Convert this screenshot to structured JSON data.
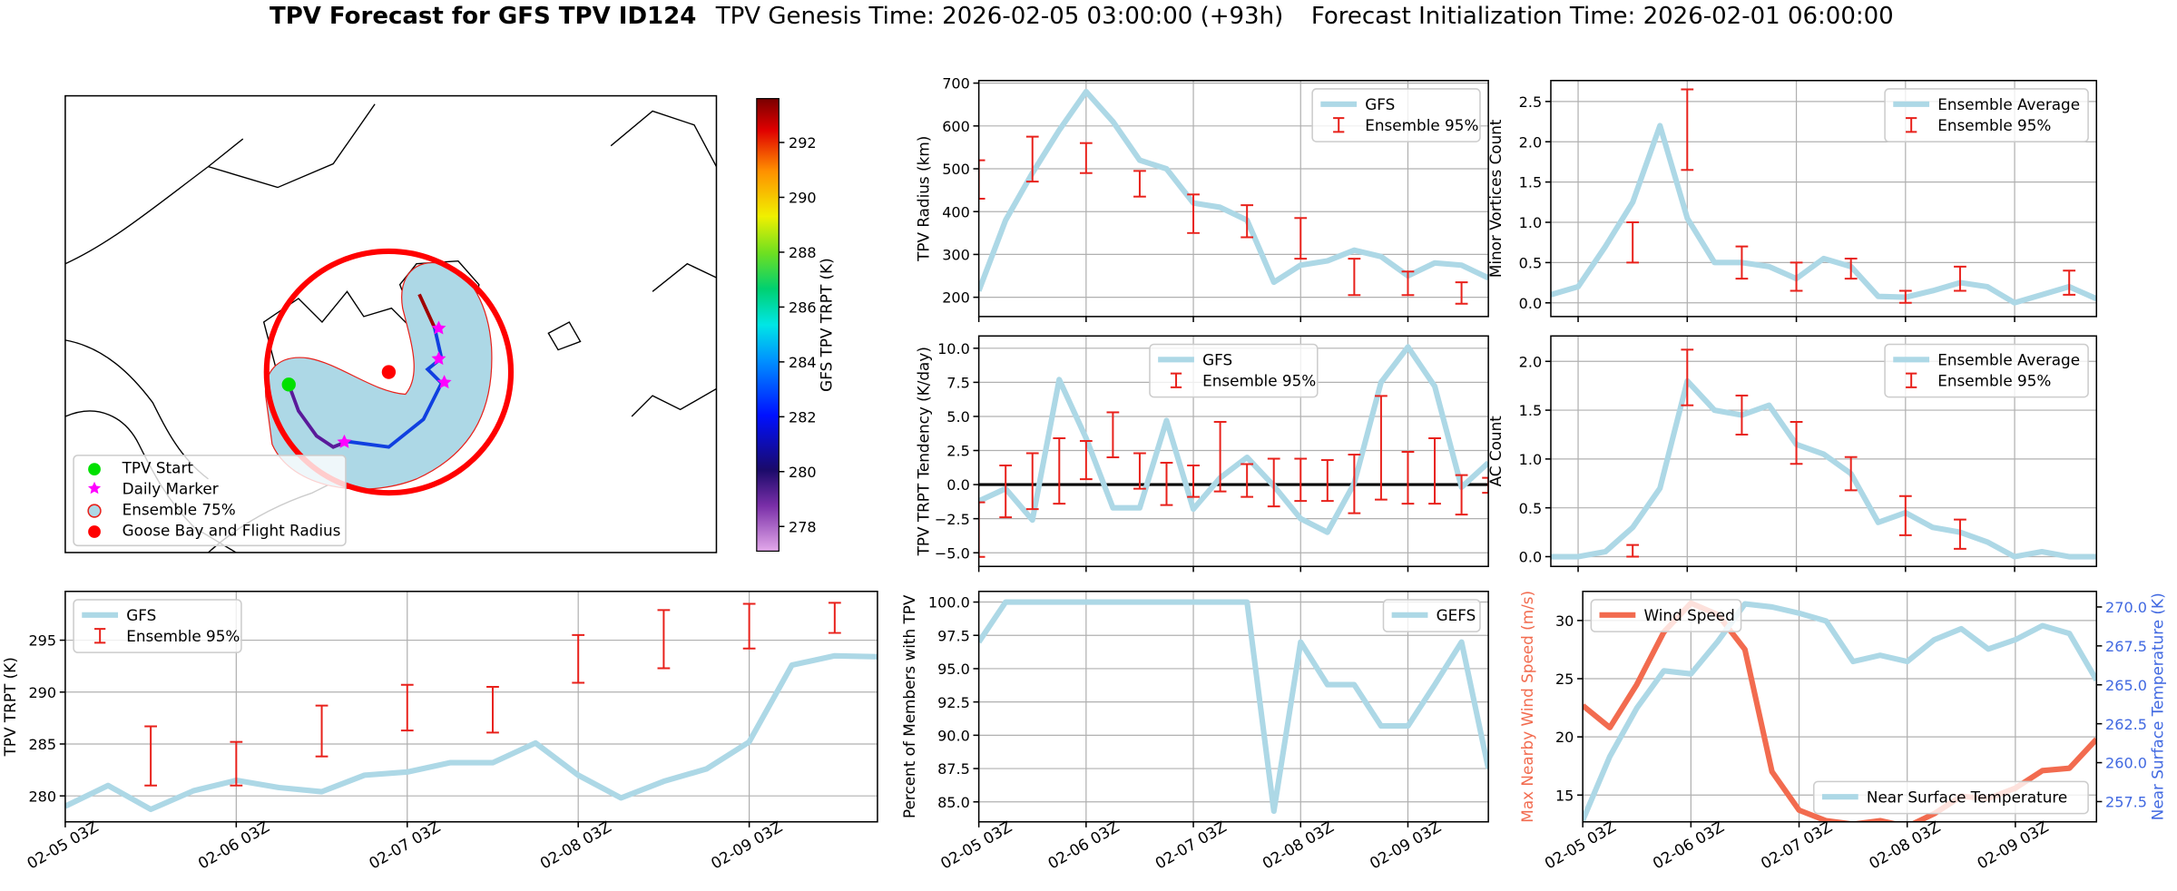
{
  "figure": {
    "title": "TPV Forecast for GFS TPV ID124",
    "genesis": "TPV Genesis Time: 2026-02-05 03:00:00 (+93h)",
    "init": "Forecast Initialization Time: 2026-02-01 06:00:00"
  },
  "chart_data": [
    {
      "type": "map",
      "legend": [
        "TPV Start",
        "Daily Marker",
        "Ensemble 75%",
        "Goose Bay and Flight Radius"
      ],
      "colorbar_label": "GFS TPV TRPT (K)",
      "clim": [
        277.1,
        293.6
      ],
      "cticks": [
        278,
        280,
        282,
        284,
        286,
        288,
        290,
        292
      ]
    },
    {
      "type": "line",
      "ylabel": "TPV Radius (km)",
      "x": [
        0,
        6,
        12,
        18,
        24,
        30,
        36,
        42,
        48,
        54,
        60,
        66,
        72,
        78,
        84,
        90,
        96,
        102,
        108,
        114
      ],
      "xlim": [
        0,
        114
      ],
      "xticks": [
        0,
        24,
        48,
        72,
        96
      ],
      "ylim": [
        155,
        706
      ],
      "yticks": [
        200,
        300,
        400,
        500,
        600,
        700
      ],
      "grid": true,
      "legend": "upper right",
      "series": [
        {
          "name": "GFS",
          "color": "#add8e6",
          "values": [
            215,
            380,
            490,
            590,
            680,
            610,
            520,
            500,
            420,
            410,
            380,
            235,
            275,
            285,
            310,
            295,
            250,
            280,
            275,
            245
          ]
        }
      ],
      "errorbars": {
        "name": "Ensemble 95%",
        "color": "#e8211b",
        "x": [
          0,
          12,
          24,
          36,
          48,
          60,
          72,
          84,
          96,
          108
        ],
        "lower": [
          430,
          470,
          490,
          435,
          350,
          340,
          290,
          205,
          205,
          185
        ],
        "upper": [
          520,
          575,
          560,
          495,
          440,
          415,
          385,
          290,
          260,
          235
        ]
      }
    },
    {
      "type": "line",
      "ylabel": "Minor Vortices Count",
      "x": [
        -6,
        0,
        6,
        12,
        18,
        24,
        30,
        36,
        42,
        48,
        54,
        60,
        66,
        72,
        78,
        84,
        90,
        96,
        102,
        108,
        114
      ],
      "xlim": [
        -6,
        114
      ],
      "xticks": [
        0,
        24,
        48,
        72,
        96
      ],
      "ylim": [
        -0.17,
        2.76
      ],
      "yticks": [
        {
          "value": 0,
          "label": "0.0"
        },
        0.5,
        {
          "value": 1,
          "label": "1.0"
        },
        1.5,
        {
          "value": 2,
          "label": "2.0"
        },
        2.5
      ],
      "grid": true,
      "legend": "upper right",
      "series": [
        {
          "name": "Ensemble Average",
          "color": "#add8e6",
          "values": [
            0.1,
            0.2,
            0.7,
            1.25,
            2.2,
            1.05,
            0.5,
            0.5,
            0.45,
            0.3,
            0.55,
            0.45,
            0.08,
            0.07,
            0.15,
            0.25,
            0.2,
            0.0,
            0.1,
            0.2,
            0.05
          ]
        }
      ],
      "errorbars": {
        "name": "Ensemble 95%",
        "color": "#e8211b",
        "x": [
          12,
          24,
          36,
          48,
          60,
          72,
          84,
          108
        ],
        "lower": [
          0.5,
          1.65,
          0.3,
          0.15,
          0.3,
          0.0,
          0.15,
          0.1
        ],
        "upper": [
          1.0,
          2.65,
          0.7,
          0.5,
          0.55,
          0.15,
          0.45,
          0.4
        ]
      }
    },
    {
      "type": "line",
      "ylabel": "TPV TRPT Tendency (K/day)",
      "x": [
        0,
        6,
        12,
        18,
        24,
        30,
        36,
        42,
        48,
        54,
        60,
        66,
        72,
        78,
        84,
        90,
        96,
        102,
        108,
        114
      ],
      "xlim": [
        0,
        114
      ],
      "xticks": [
        0,
        24,
        48,
        72,
        96
      ],
      "ylim": [
        -6.0,
        10.9
      ],
      "yticks": [
        {
          "value": -5,
          "label": "−5.0"
        },
        {
          "value": -2.5,
          "label": "−2.5"
        },
        {
          "value": 0,
          "label": "0.0"
        },
        2.5,
        {
          "value": 5,
          "label": "5.0"
        },
        7.5,
        {
          "value": 10,
          "label": "10.0"
        }
      ],
      "grid": true,
      "legend": "upper center",
      "hline": 0,
      "series": [
        {
          "name": "GFS",
          "color": "#add8e6",
          "values": [
            -1.2,
            -0.3,
            -2.6,
            7.7,
            3.4,
            -1.7,
            -1.7,
            4.7,
            -1.8,
            0.5,
            2.0,
            -0.1,
            -2.5,
            -3.5,
            0.1,
            7.5,
            10.1,
            7.2,
            -0.2,
            1.6
          ]
        }
      ],
      "errorbars": {
        "name": "Ensemble 95%",
        "color": "#e8211b",
        "x": [
          0,
          6,
          12,
          18,
          24,
          30,
          36,
          42,
          48,
          54,
          60,
          66,
          72,
          78,
          84,
          90,
          96,
          102,
          108,
          114
        ],
        "lower": [
          -5.3,
          -2.4,
          -1.8,
          -1.4,
          0.4,
          2.0,
          -0.3,
          -1.5,
          -0.9,
          -0.5,
          -0.9,
          -1.6,
          -1.2,
          -1.2,
          -2.1,
          -1.1,
          -1.4,
          -1.4,
          -2.2,
          -0.6
        ],
        "upper": [
          -1.3,
          1.4,
          2.3,
          3.4,
          3.2,
          5.3,
          2.3,
          1.6,
          1.4,
          4.6,
          1.5,
          1.9,
          1.9,
          1.8,
          2.2,
          6.5,
          2.4,
          3.4,
          0.7,
          0.5
        ]
      }
    },
    {
      "type": "line",
      "ylabel": "AC Count",
      "x": [
        -6,
        0,
        6,
        12,
        18,
        24,
        30,
        36,
        42,
        48,
        54,
        60,
        66,
        72,
        78,
        84,
        90,
        96,
        102,
        108,
        114
      ],
      "xlim": [
        -6,
        114
      ],
      "xticks": [
        0,
        24,
        48,
        72,
        96
      ],
      "ylim": [
        -0.1,
        2.26
      ],
      "yticks": [
        {
          "value": 0,
          "label": "0.0"
        },
        0.5,
        {
          "value": 1,
          "label": "1.0"
        },
        1.5,
        {
          "value": 2,
          "label": "2.0"
        }
      ],
      "grid": true,
      "legend": "upper right",
      "series": [
        {
          "name": "Ensemble Average",
          "color": "#add8e6",
          "values": [
            0,
            0,
            0.05,
            0.3,
            0.7,
            1.8,
            1.5,
            1.45,
            1.55,
            1.15,
            1.05,
            0.85,
            0.35,
            0.45,
            0.3,
            0.25,
            0.15,
            0,
            0.05,
            0,
            0
          ]
        }
      ],
      "errorbars": {
        "name": "Ensemble 95%",
        "color": "#e8211b",
        "x": [
          12,
          24,
          36,
          48,
          60,
          72,
          84
        ],
        "lower": [
          0,
          1.55,
          1.25,
          0.95,
          0.68,
          0.22,
          0.08
        ],
        "upper": [
          0.12,
          2.12,
          1.65,
          1.38,
          1.02,
          0.62,
          0.38
        ]
      }
    },
    {
      "type": "line",
      "ylabel": "TPV TRPT (K)",
      "x": [
        0,
        6,
        12,
        18,
        24,
        30,
        36,
        42,
        48,
        54,
        60,
        66,
        72,
        78,
        84,
        90,
        96,
        102,
        108,
        114
      ],
      "xlim": [
        0,
        114
      ],
      "xticks": [
        {
          "value": 0,
          "label": "02-05 03Z"
        },
        {
          "value": 24,
          "label": "02-06 03Z"
        },
        {
          "value": 48,
          "label": "02-07 03Z"
        },
        {
          "value": 72,
          "label": "02-08 03Z"
        },
        {
          "value": 96,
          "label": "02-09 03Z"
        }
      ],
      "ylim": [
        277.5,
        299.7
      ],
      "yticks": [
        280,
        285,
        290,
        295
      ],
      "grid": true,
      "legend": "upper left",
      "series": [
        {
          "name": "GFS",
          "color": "#add8e6",
          "values": [
            279,
            281,
            278.7,
            280.5,
            281.5,
            280.8,
            280.4,
            282,
            282.3,
            283.2,
            283.2,
            285.1,
            282,
            279.8,
            281.4,
            282.6,
            285.2,
            292.6,
            293.5,
            293.4
          ]
        }
      ],
      "errorbars": {
        "name": "Ensemble 95%",
        "color": "#e8211b",
        "x": [
          12,
          24,
          36,
          48,
          60,
          72,
          84,
          96,
          108
        ],
        "lower": [
          281,
          281,
          283.8,
          286.3,
          286.1,
          290.9,
          292.3,
          294.2,
          295.7
        ],
        "upper": [
          286.7,
          285.2,
          288.7,
          290.7,
          290.5,
          295.5,
          297.9,
          298.5,
          298.6
        ]
      }
    },
    {
      "type": "line",
      "ylabel": "Percent of Members with TPV",
      "x": [
        0,
        6,
        12,
        18,
        24,
        30,
        36,
        42,
        48,
        54,
        60,
        66,
        72,
        78,
        84,
        90,
        96,
        102,
        108,
        114
      ],
      "xlim": [
        0,
        114
      ],
      "xticks": [
        {
          "value": 0,
          "label": "02-05 03Z"
        },
        {
          "value": 24,
          "label": "02-06 03Z"
        },
        {
          "value": 48,
          "label": "02-07 03Z"
        },
        {
          "value": 72,
          "label": "02-08 03Z"
        },
        {
          "value": 96,
          "label": "02-09 03Z"
        }
      ],
      "ylim": [
        83.5,
        100.8
      ],
      "yticks": [
        {
          "value": 85,
          "label": "85.0"
        },
        87.5,
        {
          "value": 90,
          "label": "90.0"
        },
        92.5,
        {
          "value": 95,
          "label": "95.0"
        },
        97.5,
        {
          "value": 100,
          "label": "100.0"
        }
      ],
      "grid": true,
      "legend": "upper right",
      "series": [
        {
          "name": "GEFS",
          "color": "#add8e6",
          "values": [
            97,
            100,
            100,
            100,
            100,
            100,
            100,
            100,
            100,
            100,
            100,
            84.3,
            97,
            93.8,
            93.8,
            90.7,
            90.7,
            93.8,
            97,
            87.5
          ]
        }
      ]
    },
    {
      "type": "dual_line",
      "ylabel": "Max Nearby Wind Speed (m/s)",
      "y2label": "Near Surface Temperature (K)",
      "ycolor": "#f26b4f",
      "y2color": "#4169e1",
      "x": [
        0,
        6,
        12,
        18,
        24,
        30,
        36,
        42,
        48,
        54,
        60,
        66,
        72,
        78,
        84,
        90,
        96,
        102,
        108,
        114
      ],
      "xlim": [
        0,
        114
      ],
      "xticks": [
        {
          "value": 0,
          "label": "02-05 03Z"
        },
        {
          "value": 24,
          "label": "02-06 03Z"
        },
        {
          "value": 48,
          "label": "02-07 03Z"
        },
        {
          "value": 72,
          "label": "02-08 03Z"
        },
        {
          "value": 96,
          "label": "02-09 03Z"
        }
      ],
      "ylim": [
        12.7,
        32.5
      ],
      "yticks": [
        15,
        20,
        25,
        30
      ],
      "y2lim": [
        256.2,
        271.0
      ],
      "y2ticks": [
        257.5,
        {
          "value": 260,
          "label": "260.0"
        },
        262.5,
        {
          "value": 265,
          "label": "265.0"
        },
        267.5,
        {
          "value": 270,
          "label": "270.0"
        }
      ],
      "grid": true,
      "legend": "upper left",
      "legend2": "lower right",
      "series": [
        {
          "name": "Wind Speed",
          "color": "#f26b4f",
          "values": [
            22.7,
            20.8,
            24.5,
            29.0,
            31.5,
            30.5,
            27.5,
            17.0,
            13.7,
            12.8,
            12.5,
            12.8,
            12.3,
            13.4,
            14.9,
            14.7,
            15.6,
            17.1,
            17.3,
            19.8
          ]
        },
        {
          "name": "Near Surface Temperature",
          "color": "#add8e6",
          "axis": "y2",
          "values": [
            256.3,
            260.4,
            263.5,
            265.9,
            265.7,
            267.8,
            270.2,
            270.0,
            269.6,
            269.1,
            266.5,
            266.9,
            266.5,
            267.9,
            268.6,
            267.3,
            267.9,
            268.8,
            268.3,
            265.3
          ]
        }
      ]
    }
  ]
}
